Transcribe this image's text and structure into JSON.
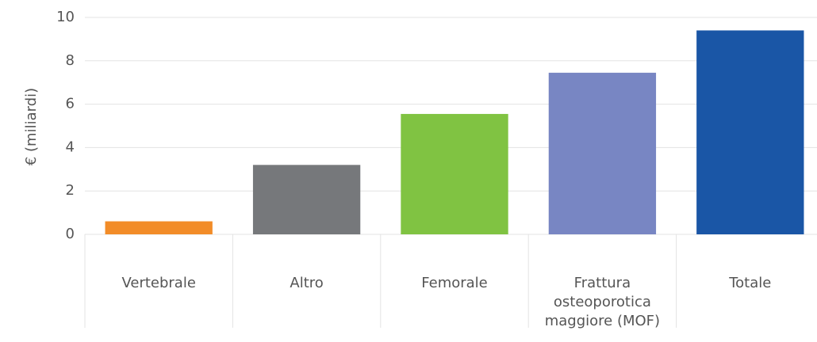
{
  "chart_data": {
    "type": "bar",
    "y_label": "€ (miliardi)",
    "categories": [
      "Vertebrale",
      "Altro",
      "Femorale",
      "Frattura osteoporotica maggiore (MOF)",
      "Totale"
    ],
    "values": [
      0.6,
      3.2,
      5.55,
      7.45,
      9.4
    ],
    "colors": [
      "#f28c28",
      "#76787b",
      "#80c342",
      "#7886c3",
      "#1a56a6"
    ],
    "ylim": [
      0,
      10
    ],
    "yticks": [
      0,
      2,
      4,
      6,
      8,
      10
    ],
    "grid": true
  }
}
